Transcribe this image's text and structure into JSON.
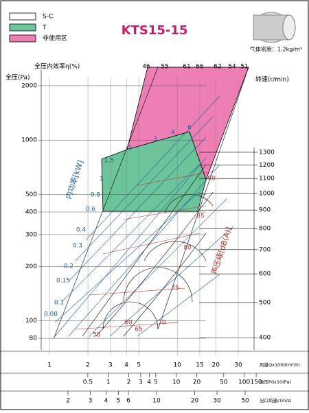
{
  "chart_data": {
    "type": "fan-performance",
    "title": "KTS15-15",
    "legend": [
      "S-C",
      "T",
      "非使用区"
    ],
    "legend_colors": [
      "#ffffff",
      "#6cc59a",
      "#ee7fb5"
    ],
    "density_note": "气体密度：1.2kg/m³",
    "y_label": "全压(Pa)",
    "y_log": true,
    "ylim": [
      69,
      2240
    ],
    "yticks": [
      80,
      100,
      200,
      300,
      400,
      500,
      1000,
      2000
    ],
    "y2_label": "转速(r/min)",
    "y2lim": [
      370,
      2100
    ],
    "y2ticks": [
      400,
      500,
      600,
      700,
      800,
      900,
      1000,
      1100,
      1200,
      1300
    ],
    "efficiency_label": "全压内效率η(%)",
    "efficiency_values": [
      46,
      55,
      61,
      66,
      62,
      54,
      51
    ],
    "power_label": "内功率[kW]",
    "power_values": [
      6,
      4,
      3,
      2,
      1.5,
      1,
      0.8,
      0.6,
      0.4,
      0.3,
      0.2,
      0.15,
      0.1,
      0.08
    ],
    "noise_label": "声压级[dB(A)]",
    "noise_values": [
      90,
      85,
      80,
      75,
      70,
      65,
      60,
      55
    ],
    "x_axes": [
      {
        "label": "风量Qx1000(m³/h)",
        "xlim": [
          0.862,
          48
        ],
        "xticks": [
          1,
          2,
          3,
          4,
          5,
          10,
          15,
          20,
          30
        ]
      },
      {
        "label": "动压Pdx10(Pa)",
        "xlim": [
          0.103,
          198
        ],
        "xticks": [
          0.5,
          1,
          2,
          3,
          4,
          5,
          10,
          20,
          50,
          100,
          150
        ]
      },
      {
        "label": "出口风速c(m/s)",
        "xlim": [
          1.23,
          70.9
        ],
        "xticks": [
          2,
          3,
          4,
          5,
          6,
          10,
          20,
          30,
          50
        ]
      }
    ]
  }
}
